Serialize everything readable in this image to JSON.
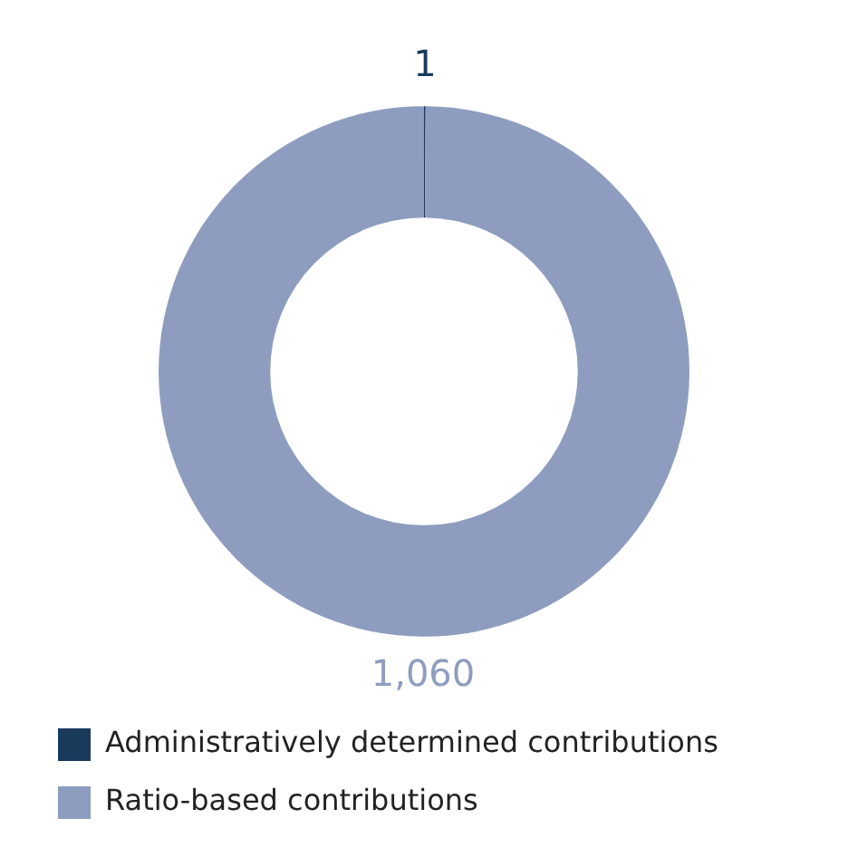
{
  "chart_data": {
    "type": "donut",
    "categories": [
      "Administratively determined contributions",
      "Ratio-based contributions"
    ],
    "values": [
      1,
      1060
    ],
    "colors": [
      "#1a3a5c",
      "#8e9dbf"
    ],
    "value_labels": [
      "1",
      "1,060"
    ],
    "legend": "bottom"
  }
}
